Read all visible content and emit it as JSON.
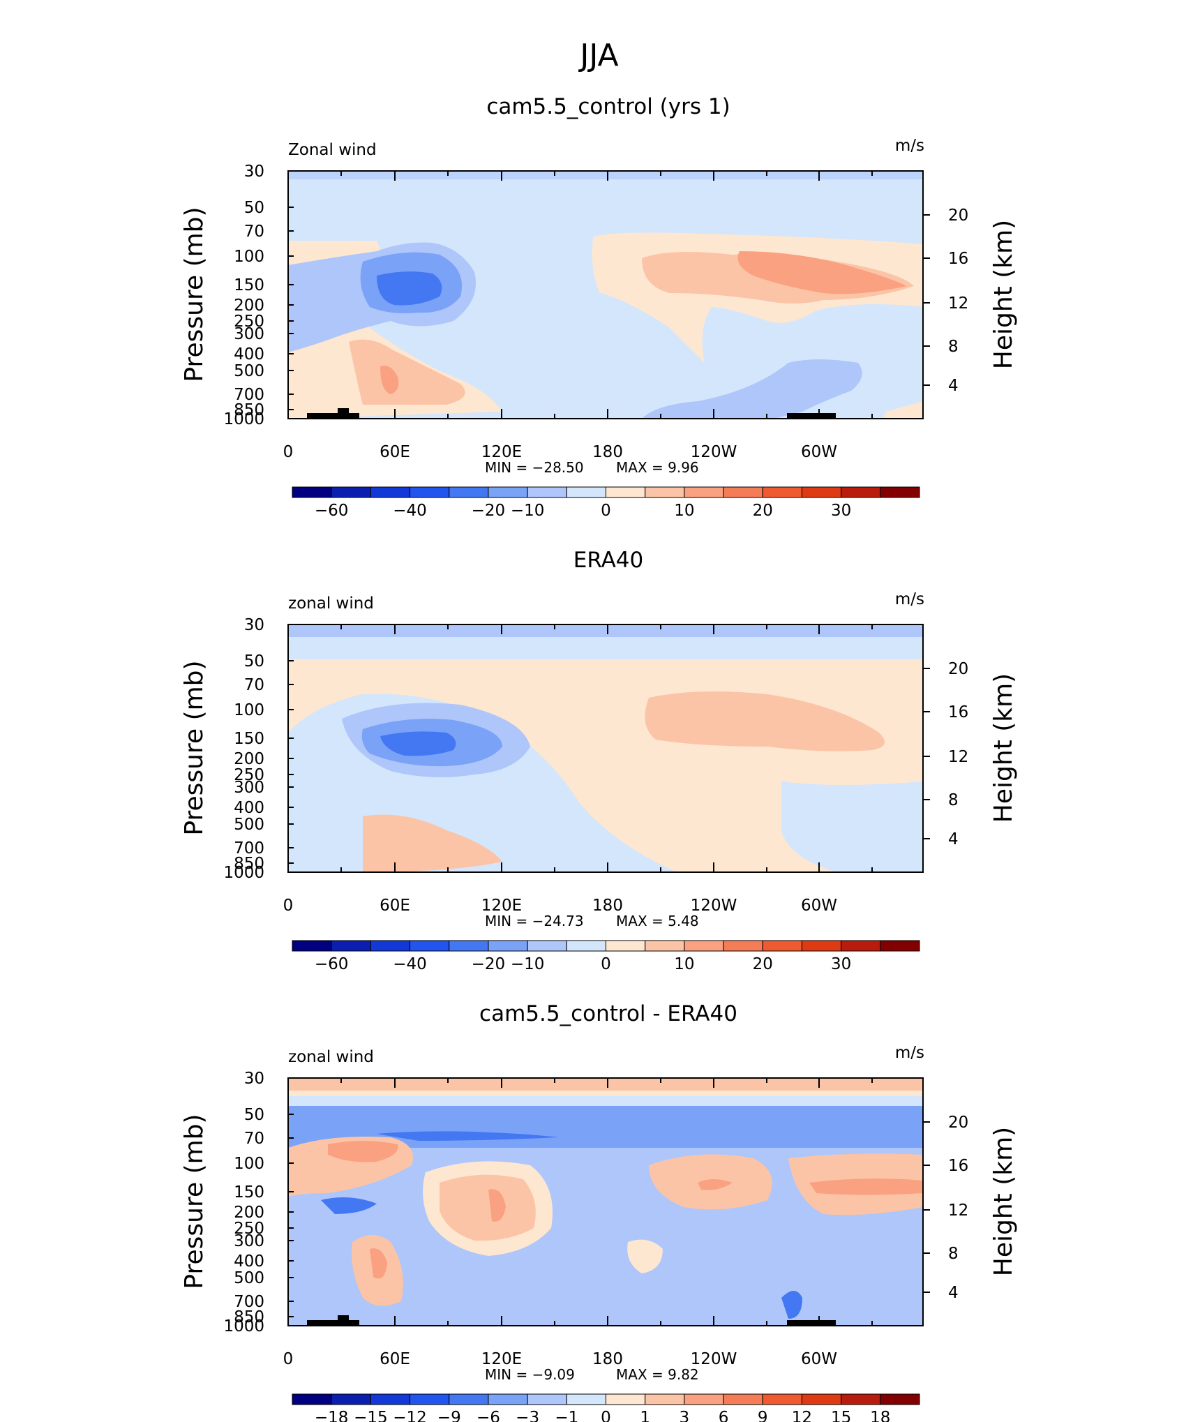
{
  "figure_title": "JJA",
  "chart_data": [
    {
      "type": "heatmap",
      "title": "cam5.5_control (yrs 1)",
      "variable_label": "Zonal wind",
      "units": "m/s",
      "ylabel": "Pressure (mb)",
      "ylabel_right": "Height (km)",
      "y_ticks": [
        "30",
        "50",
        "70",
        "100",
        "150",
        "200",
        "250",
        "300",
        "400",
        "500",
        "700",
        "850",
        "1000"
      ],
      "y2_ticks": [
        "20",
        "16",
        "12",
        "8",
        "4"
      ],
      "x_ticks": [
        "0",
        "60E",
        "120E",
        "180",
        "120W",
        "60W"
      ],
      "min_label": "MIN  =   −28.50",
      "max_label": "MAX  =      9.96",
      "min": -28.5,
      "max": 9.96,
      "colorbar_labels": [
        "−60",
        "−40",
        "−20",
        "−10",
        "0",
        "10",
        "20",
        "30"
      ],
      "colorbar_colors": [
        "#000080",
        "#0a1fb0",
        "#1238d8",
        "#2155ee",
        "#4477f2",
        "#7aa2f7",
        "#aec6fa",
        "#d3e6fc",
        "#fde7d1",
        "#fcc4a6",
        "#f9a180",
        "#f47c56",
        "#ef5a30",
        "#de3a14",
        "#b71c0c",
        "#830000"
      ]
    },
    {
      "type": "heatmap",
      "title": "ERA40",
      "variable_label": "zonal wind",
      "units": "m/s",
      "ylabel": "Pressure (mb)",
      "ylabel_right": "Height (km)",
      "y_ticks": [
        "30",
        "50",
        "70",
        "100",
        "150",
        "200",
        "250",
        "300",
        "400",
        "500",
        "700",
        "850",
        "1000"
      ],
      "y2_ticks": [
        "20",
        "16",
        "12",
        "8",
        "4"
      ],
      "x_ticks": [
        "0",
        "60E",
        "120E",
        "180",
        "120W",
        "60W"
      ],
      "min_label": "MIN  =   −24.73",
      "max_label": "MAX  =      5.48",
      "min": -24.73,
      "max": 5.48,
      "colorbar_labels": [
        "−60",
        "−40",
        "−20",
        "−10",
        "0",
        "10",
        "20",
        "30"
      ],
      "colorbar_colors": [
        "#000080",
        "#0a1fb0",
        "#1238d8",
        "#2155ee",
        "#4477f2",
        "#7aa2f7",
        "#aec6fa",
        "#d3e6fc",
        "#fde7d1",
        "#fcc4a6",
        "#f9a180",
        "#f47c56",
        "#ef5a30",
        "#de3a14",
        "#b71c0c",
        "#830000"
      ]
    },
    {
      "type": "heatmap",
      "title": "cam5.5_control - ERA40",
      "variable_label": "zonal wind",
      "units": "m/s",
      "ylabel": "Pressure (mb)",
      "ylabel_right": "Height (km)",
      "y_ticks": [
        "30",
        "50",
        "70",
        "100",
        "150",
        "200",
        "250",
        "300",
        "400",
        "500",
        "700",
        "850",
        "1000"
      ],
      "y2_ticks": [
        "20",
        "16",
        "12",
        "8",
        "4"
      ],
      "x_ticks": [
        "0",
        "60E",
        "120E",
        "180",
        "120W",
        "60W"
      ],
      "min_label": "MIN  =    −9.09",
      "max_label": "MAX  =     9.82",
      "min": -9.09,
      "max": 9.82,
      "colorbar_labels": [
        "−18",
        "−15",
        "−12",
        "−9",
        "−6",
        "−3",
        "−1",
        "0",
        "1",
        "3",
        "6",
        "9",
        "12",
        "15",
        "18"
      ],
      "colorbar_colors": [
        "#000080",
        "#0a1fb0",
        "#1238d8",
        "#2155ee",
        "#4477f2",
        "#7aa2f7",
        "#aec6fa",
        "#d3e6fc",
        "#fde7d1",
        "#fcc4a6",
        "#f9a180",
        "#f47c56",
        "#ef5a30",
        "#de3a14",
        "#b71c0c",
        "#830000"
      ]
    }
  ]
}
